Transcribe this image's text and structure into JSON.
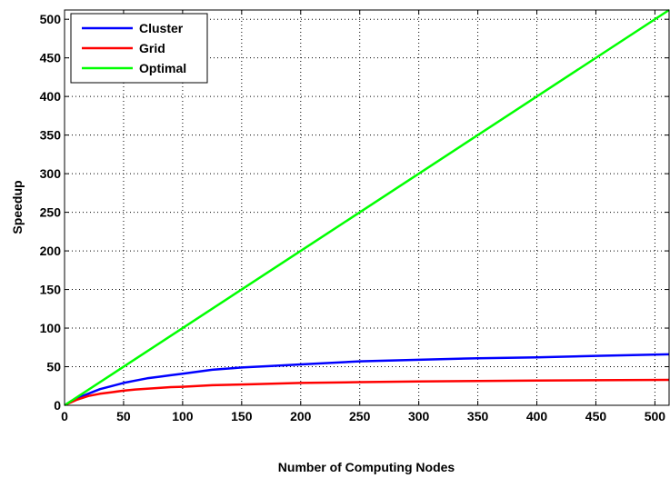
{
  "chart_data": {
    "type": "line",
    "title": "",
    "xlabel": "Number of Computing Nodes",
    "ylabel": "Speedup",
    "xlim": [
      0,
      512
    ],
    "ylim": [
      0,
      512
    ],
    "xticks": [
      0,
      50,
      100,
      150,
      200,
      250,
      300,
      350,
      400,
      450,
      500
    ],
    "yticks": [
      0,
      50,
      100,
      150,
      200,
      250,
      300,
      350,
      400,
      450,
      500
    ],
    "grid": true,
    "legend_position": "top-left",
    "series": [
      {
        "name": "Cluster",
        "color": "#0000ff",
        "x": [
          1,
          10,
          20,
          30,
          40,
          50,
          60,
          70,
          80,
          90,
          100,
          125,
          150,
          175,
          200,
          250,
          300,
          350,
          400,
          450,
          512
        ],
        "y": [
          1,
          9,
          15,
          21,
          25,
          29,
          32,
          35,
          37,
          39,
          41,
          46,
          49,
          51,
          53,
          57,
          59,
          61,
          62,
          64,
          66
        ]
      },
      {
        "name": "Grid",
        "color": "#ff0000",
        "x": [
          1,
          10,
          20,
          30,
          40,
          50,
          60,
          70,
          80,
          90,
          100,
          125,
          150,
          175,
          200,
          250,
          300,
          350,
          400,
          450,
          512
        ],
        "y": [
          1,
          7,
          12,
          15,
          17,
          19,
          20.5,
          21.5,
          22.5,
          23.5,
          24,
          26,
          27,
          28,
          29,
          30,
          31,
          31.5,
          32,
          32.5,
          33
        ]
      },
      {
        "name": "Optimal",
        "color": "#00ff00",
        "x": [
          0,
          512
        ],
        "y": [
          0,
          512
        ]
      }
    ]
  }
}
